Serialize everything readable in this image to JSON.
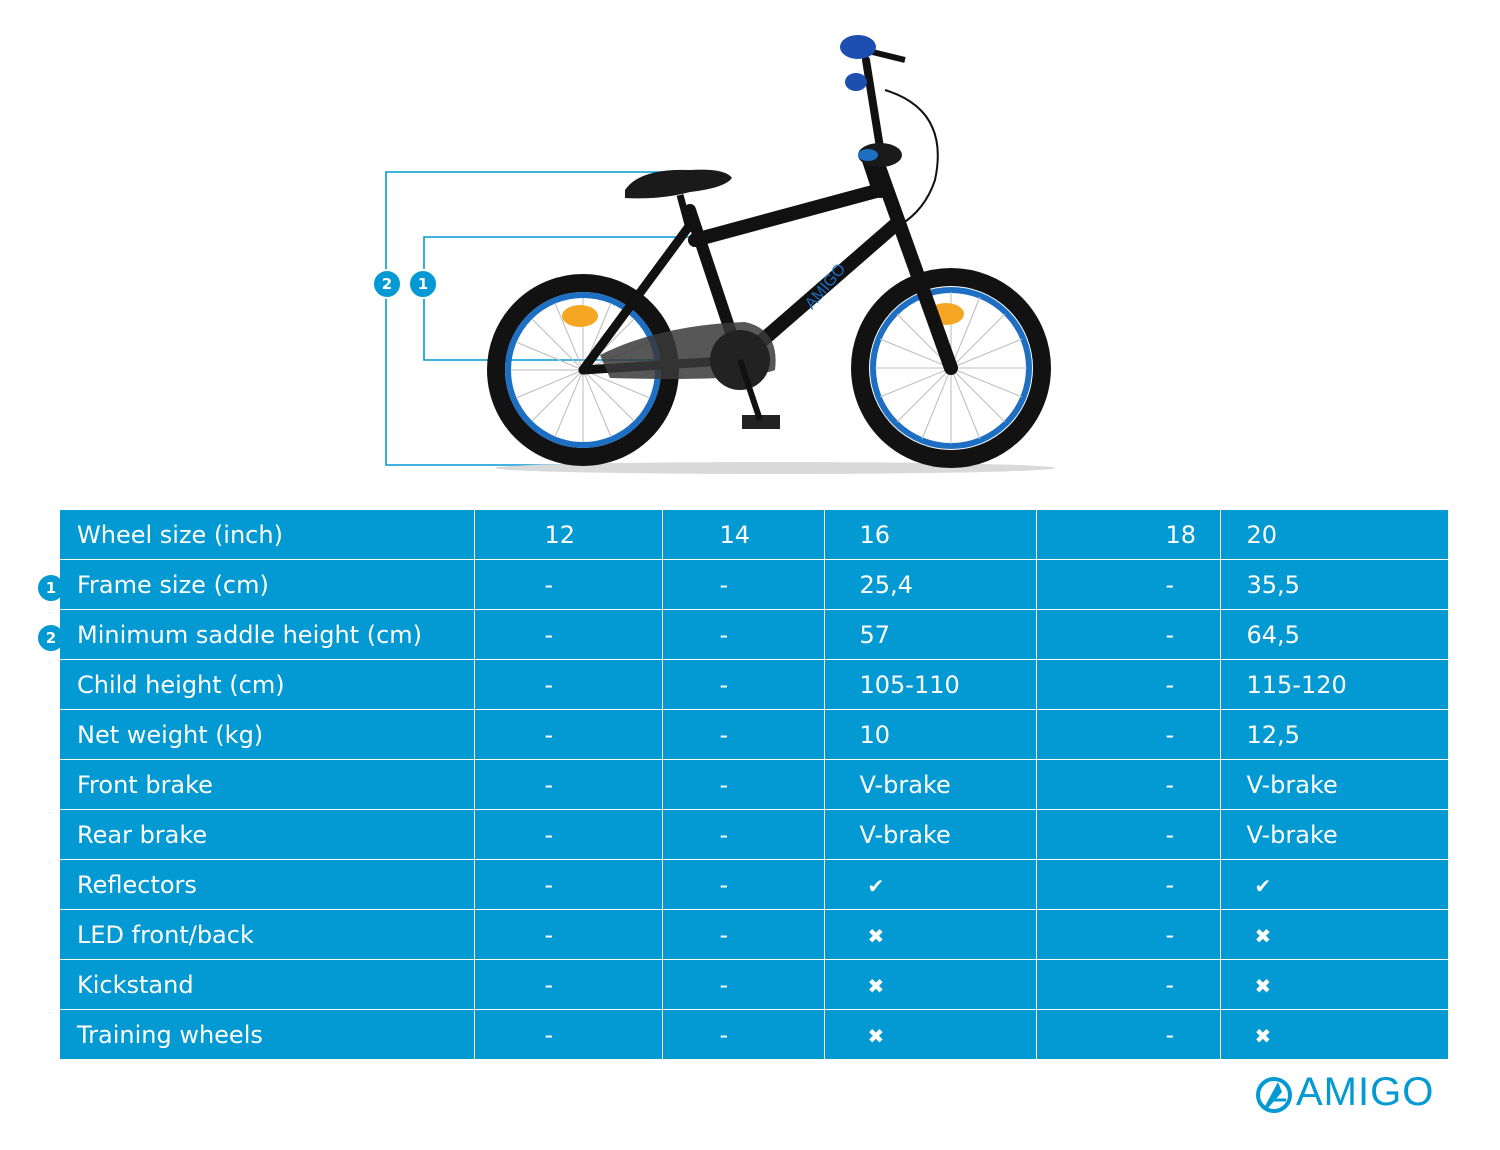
{
  "markers": {
    "one": "1",
    "two": "2"
  },
  "table": {
    "columns": [
      "12",
      "14",
      "16",
      "18",
      "20"
    ],
    "rows": [
      {
        "label": "Wheel size (inch)",
        "marker": "",
        "values": [
          "12",
          "14",
          "16",
          "18",
          "20"
        ],
        "header": true
      },
      {
        "label": "Frame size (cm)",
        "marker": "1",
        "values": [
          "-",
          "-",
          "25,4",
          "-",
          "35,5"
        ]
      },
      {
        "label": "Minimum saddle height (cm)",
        "marker": "2",
        "values": [
          "-",
          "-",
          "57",
          "-",
          "64,5"
        ]
      },
      {
        "label": "Child height (cm)",
        "marker": "",
        "values": [
          "-",
          "-",
          "105-110",
          "-",
          "115-120"
        ]
      },
      {
        "label": "Net weight (kg)",
        "marker": "",
        "values": [
          "-",
          "-",
          "10",
          "-",
          "12,5"
        ]
      },
      {
        "label": "Front brake",
        "marker": "",
        "values": [
          "-",
          "-",
          "V-brake",
          "-",
          "V-brake"
        ]
      },
      {
        "label": "Rear brake",
        "marker": "",
        "values": [
          "-",
          "-",
          "V-brake",
          "-",
          "V-brake"
        ]
      },
      {
        "label": "Reflectors",
        "marker": "",
        "values": [
          "-",
          "-",
          "✔",
          "-",
          "✔"
        ]
      },
      {
        "label": "LED front/back",
        "marker": "",
        "values": [
          "-",
          "-",
          "✖",
          "-",
          "✖"
        ]
      },
      {
        "label": "Kickstand",
        "marker": "",
        "values": [
          "-",
          "-",
          "✖",
          "-",
          "✖"
        ]
      },
      {
        "label": "Training wheels",
        "marker": "",
        "values": [
          "-",
          "-",
          "✖",
          "-",
          "✖"
        ]
      }
    ]
  },
  "brand": {
    "name": "AMIGO",
    "icon": "amigo-logo-icon"
  },
  "colors": {
    "accent": "#0399d3",
    "frame": "#111111",
    "rim": "#1d6fc4",
    "reflector": "#f5a623"
  }
}
